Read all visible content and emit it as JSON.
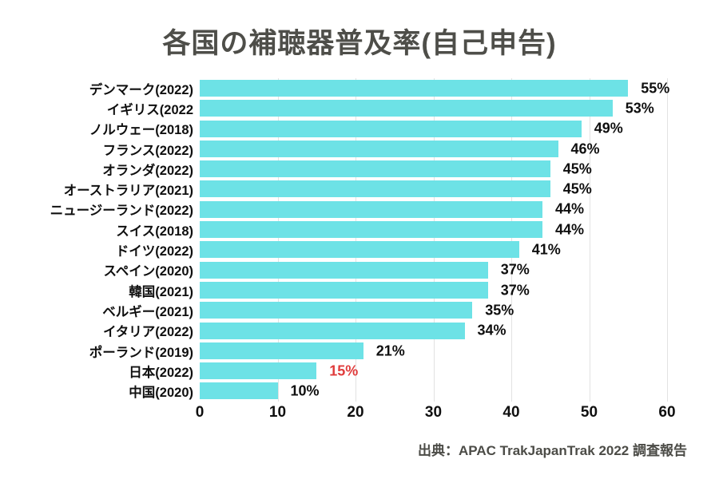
{
  "title": "各国の補聴器普及率(自己申告)",
  "source": "出典：APAC TrakJapanTrak 2022 調査報告",
  "colors": {
    "bar": "#6de2e6",
    "text": "#0f0f0f",
    "title_text": "#4e4e49",
    "highlight_value": "#e03c3c",
    "gridline": "#e2e2e2",
    "source_text": "#4c4c47",
    "background": "#ffffff"
  },
  "chart_data": {
    "type": "bar",
    "orientation": "horizontal",
    "title": "各国の補聴器普及率(自己申告)",
    "xlabel": "",
    "ylabel": "",
    "xlim": [
      0,
      60
    ],
    "xticks": [
      0,
      10,
      20,
      30,
      40,
      50,
      60
    ],
    "grid": "vertical",
    "legend": "none",
    "categories": [
      "デンマーク(2022)",
      "イギリス(2022",
      "ノルウェー(2018)",
      "フランス(2022)",
      "オランダ(2022)",
      "オーストラリア(2021)",
      "ニュージーランド(2022)",
      "スイス(2018)",
      "ドイツ(2022)",
      "スペイン(2020)",
      "韓国(2021)",
      "ベルギー(2021)",
      "イタリア(2022)",
      "ポーランド(2019)",
      "日本(2022)",
      "中国(2020)"
    ],
    "values": [
      55,
      53,
      49,
      46,
      45,
      45,
      44,
      44,
      41,
      37,
      37,
      35,
      34,
      21,
      15,
      10
    ],
    "value_labels": [
      "55%",
      "53%",
      "49%",
      "46%",
      "45%",
      "45%",
      "44%",
      "44%",
      "41%",
      "37%",
      "37%",
      "35%",
      "34%",
      "21%",
      "15%",
      "10%"
    ],
    "highlight_index": 14
  }
}
